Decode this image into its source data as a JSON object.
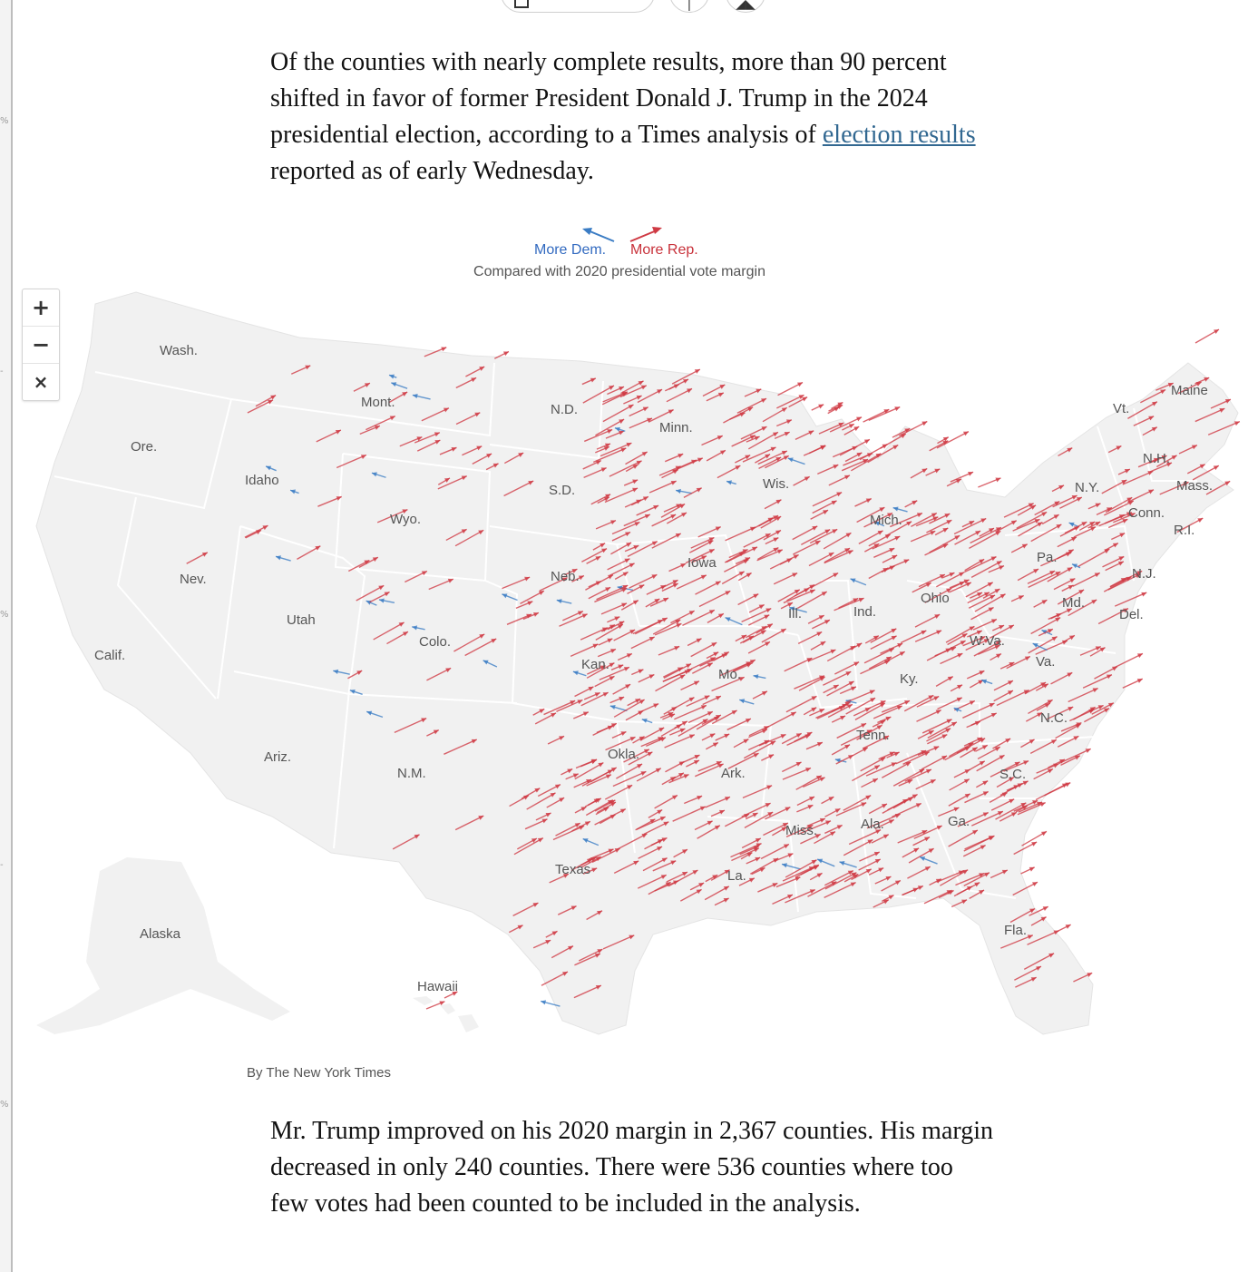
{
  "intro_paragraph": {
    "text_before_link": "Of the counties with nearly complete results, more than 90 percent shifted in favor of former President Donald J. Trump in the 2024 presidential election, according to a Times analysis of ",
    "link_text": "election results",
    "text_after_link": " reported as of early Wednesday."
  },
  "legend": {
    "dem_label": "More Dem.",
    "rep_label": "More Rep.",
    "caption": "Compared with 2020 presidential vote margin",
    "dem_color": "#3a7cc4",
    "rep_color": "#cf3a44"
  },
  "zoom_controls": {
    "zoom_in": "+",
    "zoom_out": "−",
    "reset": "×"
  },
  "map": {
    "land_color": "#f1f1f1",
    "border_color": "#ffffff",
    "state_labels": [
      {
        "name": "Wash."
      },
      {
        "name": "Ore."
      },
      {
        "name": "Calif."
      },
      {
        "name": "Idaho"
      },
      {
        "name": "Nev."
      },
      {
        "name": "Mont."
      },
      {
        "name": "Wyo."
      },
      {
        "name": "Utah"
      },
      {
        "name": "Ariz."
      },
      {
        "name": "Colo."
      },
      {
        "name": "N.M."
      },
      {
        "name": "N.D."
      },
      {
        "name": "S.D."
      },
      {
        "name": "Neb."
      },
      {
        "name": "Kan."
      },
      {
        "name": "Okla."
      },
      {
        "name": "Texas"
      },
      {
        "name": "Minn."
      },
      {
        "name": "Iowa"
      },
      {
        "name": "Mo."
      },
      {
        "name": "Ark."
      },
      {
        "name": "La."
      },
      {
        "name": "Wis."
      },
      {
        "name": "Ill."
      },
      {
        "name": "Miss."
      },
      {
        "name": "Mich."
      },
      {
        "name": "Ind."
      },
      {
        "name": "Ky."
      },
      {
        "name": "Tenn."
      },
      {
        "name": "Ala."
      },
      {
        "name": "Ohio"
      },
      {
        "name": "W.Va."
      },
      {
        "name": "Ga."
      },
      {
        "name": "Fla."
      },
      {
        "name": "S.C."
      },
      {
        "name": "N.C."
      },
      {
        "name": "Va."
      },
      {
        "name": "Md."
      },
      {
        "name": "Del."
      },
      {
        "name": "Pa."
      },
      {
        "name": "N.J."
      },
      {
        "name": "N.Y."
      },
      {
        "name": "Conn."
      },
      {
        "name": "R.I."
      },
      {
        "name": "Mass."
      },
      {
        "name": "Vt."
      },
      {
        "name": "N.H."
      },
      {
        "name": "Maine"
      },
      {
        "name": "Alaska"
      },
      {
        "name": "Hawaii"
      }
    ]
  },
  "credit": "By The New York Times",
  "second_paragraph": "Mr. Trump improved on his 2020 margin in 2,367 counties. His margin decreased in only 240 counties. There were 536 counties where too few votes had been counted to be included in the analysis."
}
